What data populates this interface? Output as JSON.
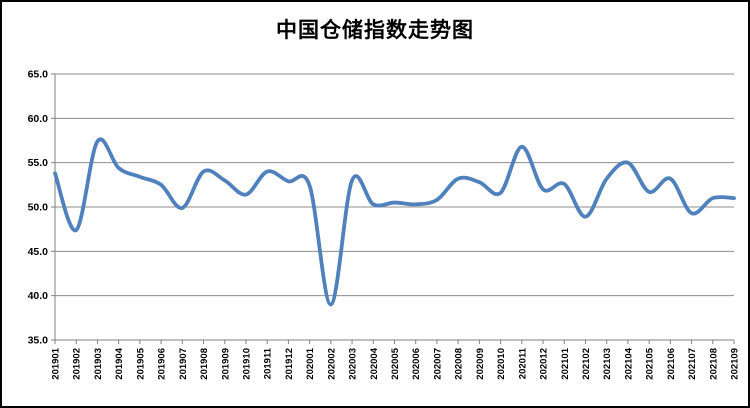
{
  "title": "中国仓储指数走势图",
  "chart_data": {
    "type": "line",
    "title": "中国仓储指数走势图",
    "categories": [
      "201901",
      "201902",
      "201903",
      "201904",
      "201905",
      "201906",
      "201907",
      "201908",
      "201909",
      "201910",
      "201911",
      "201912",
      "202001",
      "202002",
      "202003",
      "202004",
      "202005",
      "202006",
      "202007",
      "202008",
      "202009",
      "202010",
      "202011",
      "202012",
      "202101",
      "202102",
      "202103",
      "202104",
      "202105",
      "202106",
      "202107",
      "202108",
      "202109"
    ],
    "values": [
      53.8,
      47.4,
      57.4,
      54.4,
      53.4,
      52.5,
      49.9,
      54.0,
      53.0,
      51.4,
      54.0,
      52.9,
      52.4,
      39.0,
      53.0,
      50.3,
      50.5,
      50.3,
      50.8,
      53.2,
      52.8,
      51.6,
      56.8,
      52.0,
      52.6,
      48.9,
      53.2,
      55.0,
      51.7,
      53.2,
      49.3,
      51.0,
      51.0
    ],
    "xlabel": "",
    "ylabel": "",
    "ylim": [
      35.0,
      65.0
    ],
    "y_tick_step": 5.0,
    "y_tick_labels": [
      "35.0",
      "40.0",
      "45.0",
      "50.0",
      "55.0",
      "60.0",
      "65.0"
    ],
    "grid": true,
    "legend_position": "none",
    "line_smoothed": true,
    "line_color": "#4F81BD",
    "gridline_color": "#8C8C8C",
    "axis_color": "#808080",
    "tick_label_color": "#000000"
  }
}
